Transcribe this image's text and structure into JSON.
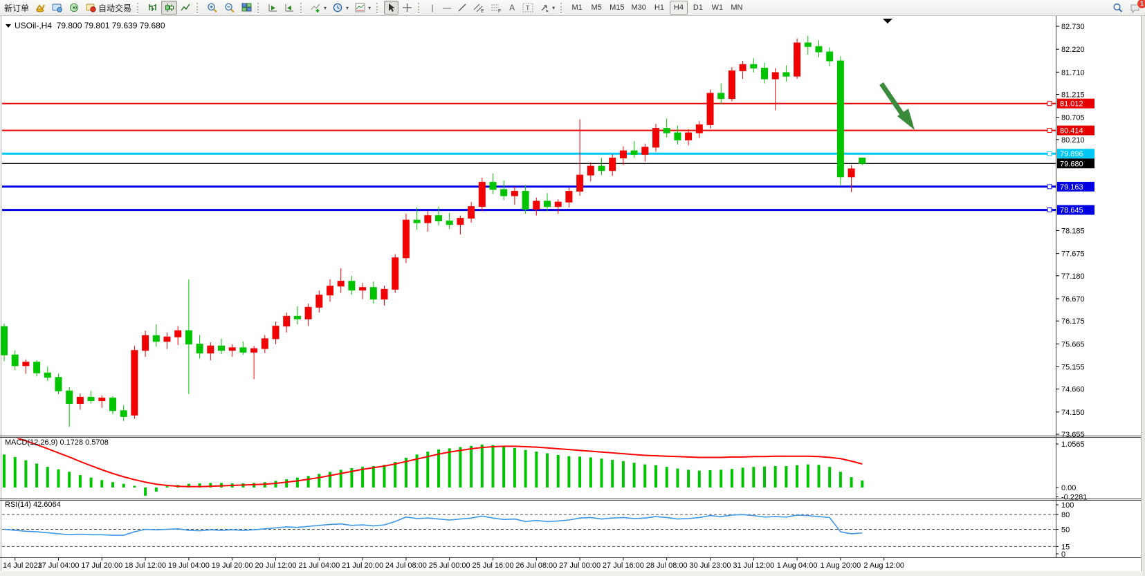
{
  "toolbar": {
    "new_order_label": "新订单",
    "autotrading_label": "自动交易",
    "timeframes": [
      "M1",
      "M5",
      "M15",
      "M30",
      "H1",
      "H4",
      "D1",
      "W1",
      "MN"
    ],
    "active_timeframe": "H4",
    "notification_count": "1",
    "channel_tool_tag": "E",
    "fibo_tool_tag": "F",
    "text_tool_label": "A",
    "label_tool_label": "T"
  },
  "chart": {
    "symbol_title": "USOil-,H4",
    "ohlc_text": "79.800 79.801 79.639 79.680",
    "current_price_label": "79.680"
  },
  "macd": {
    "header": "MACD(12,26,9)",
    "values": "0.1728 0.5708"
  },
  "rsi": {
    "header": "RSI(14)",
    "value": "42.6064"
  },
  "chart_data": {
    "type": "candlestick",
    "symbol": "USOil",
    "timeframe": "H4",
    "title": "USOil-,H4 79.800 79.801 79.639 79.680",
    "up_color": "#f00000",
    "down_color": "#00c400",
    "price_axis_ticks": [
      "82.730",
      "82.220",
      "81.710",
      "81.215",
      "80.705",
      "80.210",
      "78.185",
      "77.675",
      "77.180",
      "76.670",
      "76.175",
      "75.665",
      "75.155",
      "74.660",
      "74.150",
      "73.655"
    ],
    "price_axis_range": [
      73.655,
      82.73
    ],
    "overlay_lines": [
      {
        "label": "81.012",
        "value": 81.012,
        "color": "#e60000",
        "width": 2
      },
      {
        "label": "80.414",
        "value": 80.414,
        "color": "#e60000",
        "width": 2
      },
      {
        "label": "79.896",
        "value": 79.896,
        "color": "#00c8f5",
        "width": 3
      },
      {
        "label": "79.163",
        "value": 79.163,
        "color": "#0000e0",
        "width": 3
      },
      {
        "label": "78.645",
        "value": 78.645,
        "color": "#0000e0",
        "width": 3
      }
    ],
    "current_price_line": {
      "label": "79.680",
      "value": 79.68,
      "color": "#000000"
    },
    "annotations": [
      {
        "type": "arrow-down-right",
        "color": "#3a8a3c"
      },
      {
        "type": "chart-shift-marker",
        "color": "#000000"
      }
    ],
    "time_labels": [
      "14 Jul 2023",
      "17 Jul 04:00",
      "17 Jul 20:00",
      "18 Jul 12:00",
      "19 Jul 04:00",
      "19 Jul 20:00",
      "20 Jul 12:00",
      "21 Jul 04:00",
      "21 Jul 20:00",
      "24 Jul 08:00",
      "25 Jul 00:00",
      "25 Jul 16:00",
      "26 Jul 08:00",
      "27 Jul 00:00",
      "27 Jul 16:00",
      "28 Jul 08:00",
      "30 Jul 23:00",
      "31 Jul 12:00",
      "1 Aug 04:00",
      "1 Aug 20:00",
      "2 Aug 12:00"
    ],
    "candles": [
      [
        76.05,
        76.12,
        75.28,
        75.42
      ],
      [
        75.42,
        75.52,
        75.08,
        75.18
      ],
      [
        75.18,
        75.32,
        75.0,
        75.26
      ],
      [
        75.26,
        75.3,
        74.94,
        75.02
      ],
      [
        75.02,
        75.16,
        74.84,
        74.92
      ],
      [
        74.92,
        75.0,
        74.55,
        74.62
      ],
      [
        74.62,
        74.7,
        73.82,
        74.34
      ],
      [
        74.34,
        74.56,
        74.2,
        74.48
      ],
      [
        74.48,
        74.62,
        74.34,
        74.4
      ],
      [
        74.4,
        74.52,
        74.24,
        74.46
      ],
      [
        74.46,
        74.5,
        74.1,
        74.18
      ],
      [
        74.18,
        74.3,
        73.95,
        74.05
      ],
      [
        74.08,
        75.62,
        74.0,
        75.52
      ],
      [
        75.52,
        75.96,
        75.38,
        75.85
      ],
      [
        75.85,
        76.1,
        75.6,
        75.72
      ],
      [
        75.72,
        75.92,
        75.55,
        75.82
      ],
      [
        75.82,
        76.06,
        75.64,
        75.96
      ],
      [
        75.96,
        77.1,
        74.55,
        75.66
      ],
      [
        75.66,
        75.86,
        75.34,
        75.46
      ],
      [
        75.46,
        75.7,
        75.3,
        75.62
      ],
      [
        75.62,
        75.78,
        75.44,
        75.52
      ],
      [
        75.52,
        75.66,
        75.38,
        75.58
      ],
      [
        75.58,
        75.72,
        75.42,
        75.48
      ],
      [
        75.48,
        75.62,
        74.88,
        75.56
      ],
      [
        75.56,
        75.86,
        75.46,
        75.78
      ],
      [
        75.78,
        76.16,
        75.66,
        76.06
      ],
      [
        76.06,
        76.36,
        75.92,
        76.28
      ],
      [
        76.28,
        76.5,
        76.1,
        76.22
      ],
      [
        76.22,
        76.56,
        76.06,
        76.48
      ],
      [
        76.48,
        76.85,
        76.36,
        76.75
      ],
      [
        76.75,
        77.1,
        76.6,
        76.95
      ],
      [
        76.95,
        77.35,
        76.8,
        77.06
      ],
      [
        77.06,
        77.18,
        76.76,
        76.86
      ],
      [
        76.86,
        77.02,
        76.66,
        76.92
      ],
      [
        76.92,
        77.05,
        76.56,
        76.66
      ],
      [
        76.66,
        76.96,
        76.52,
        76.88
      ],
      [
        76.88,
        77.66,
        76.8,
        77.58
      ],
      [
        77.58,
        78.56,
        77.46,
        78.42
      ],
      [
        78.42,
        78.7,
        78.2,
        78.36
      ],
      [
        78.36,
        78.62,
        78.16,
        78.52
      ],
      [
        78.52,
        78.72,
        78.3,
        78.4
      ],
      [
        78.4,
        78.58,
        78.22,
        78.32
      ],
      [
        78.32,
        78.52,
        78.1,
        78.46
      ],
      [
        78.46,
        78.82,
        78.36,
        78.72
      ],
      [
        78.72,
        79.36,
        78.62,
        79.26
      ],
      [
        79.26,
        79.46,
        79.0,
        79.1
      ],
      [
        79.1,
        79.3,
        78.86,
        78.96
      ],
      [
        78.96,
        79.16,
        78.76,
        79.06
      ],
      [
        79.06,
        79.2,
        78.56,
        78.66
      ],
      [
        78.66,
        78.92,
        78.52,
        78.84
      ],
      [
        78.84,
        79.02,
        78.62,
        78.72
      ],
      [
        78.72,
        78.88,
        78.56,
        78.82
      ],
      [
        78.82,
        79.14,
        78.7,
        79.06
      ],
      [
        79.06,
        80.66,
        78.96,
        79.42
      ],
      [
        79.42,
        79.7,
        79.28,
        79.62
      ],
      [
        79.62,
        79.8,
        79.42,
        79.52
      ],
      [
        79.52,
        79.88,
        79.4,
        79.8
      ],
      [
        79.8,
        80.06,
        79.64,
        79.96
      ],
      [
        79.96,
        80.18,
        79.8,
        79.88
      ],
      [
        79.88,
        80.12,
        79.72,
        80.04
      ],
      [
        80.04,
        80.56,
        79.94,
        80.46
      ],
      [
        80.46,
        80.68,
        80.26,
        80.36
      ],
      [
        80.36,
        80.52,
        80.1,
        80.2
      ],
      [
        80.2,
        80.44,
        80.08,
        80.36
      ],
      [
        80.36,
        80.62,
        80.24,
        80.54
      ],
      [
        80.54,
        81.32,
        80.46,
        81.24
      ],
      [
        81.24,
        81.46,
        81.0,
        81.12
      ],
      [
        81.12,
        81.82,
        81.06,
        81.74
      ],
      [
        81.74,
        81.96,
        81.56,
        81.88
      ],
      [
        81.88,
        82.02,
        81.7,
        81.8
      ],
      [
        81.8,
        81.92,
        81.46,
        81.56
      ],
      [
        81.56,
        81.8,
        80.86,
        81.7
      ],
      [
        81.7,
        81.86,
        81.5,
        81.62
      ],
      [
        81.62,
        82.46,
        81.56,
        82.36
      ],
      [
        82.36,
        82.52,
        82.1,
        82.28
      ],
      [
        82.28,
        82.42,
        82.04,
        82.16
      ],
      [
        82.16,
        82.26,
        81.84,
        81.96
      ],
      [
        81.96,
        82.06,
        79.2,
        79.38
      ],
      [
        79.38,
        79.64,
        79.04,
        79.56
      ],
      [
        79.8,
        79.801,
        79.639,
        79.68
      ]
    ],
    "indicators": [
      {
        "name": "MACD(12,26,9)",
        "current_values": "0.1728 0.5708",
        "axis_ticks": [
          "1.0565",
          "0.00",
          "-0.2281"
        ],
        "scale_max": 1.0565,
        "scale_min": -0.2281,
        "histogram_color": "#00c400",
        "signal_color": "#ff0000",
        "histogram": [
          0.8,
          0.74,
          0.66,
          0.58,
          0.5,
          0.44,
          0.38,
          0.3,
          0.24,
          0.18,
          0.13,
          0.09,
          0.04,
          -0.2,
          -0.1,
          0.03,
          0.06,
          0.09,
          0.1,
          0.11,
          0.11,
          0.1,
          0.1,
          0.11,
          0.13,
          0.16,
          0.2,
          0.24,
          0.28,
          0.33,
          0.38,
          0.43,
          0.47,
          0.5,
          0.52,
          0.55,
          0.62,
          0.72,
          0.8,
          0.87,
          0.92,
          0.95,
          0.98,
          1.01,
          1.04,
          1.03,
          1.0,
          0.96,
          0.91,
          0.87,
          0.83,
          0.79,
          0.76,
          0.75,
          0.73,
          0.7,
          0.67,
          0.64,
          0.6,
          0.56,
          0.54,
          0.5,
          0.46,
          0.43,
          0.41,
          0.42,
          0.43,
          0.45,
          0.48,
          0.5,
          0.51,
          0.52,
          0.52,
          0.54,
          0.56,
          0.55,
          0.5,
          0.38,
          0.25,
          0.17
        ],
        "signal": [
          1.3,
          1.22,
          1.13,
          1.04,
          0.94,
          0.84,
          0.74,
          0.63,
          0.53,
          0.43,
          0.34,
          0.26,
          0.19,
          0.13,
          0.08,
          0.05,
          0.03,
          0.02,
          0.02,
          0.03,
          0.04,
          0.05,
          0.06,
          0.07,
          0.08,
          0.1,
          0.13,
          0.16,
          0.2,
          0.24,
          0.29,
          0.34,
          0.39,
          0.44,
          0.48,
          0.52,
          0.57,
          0.63,
          0.69,
          0.75,
          0.81,
          0.86,
          0.9,
          0.94,
          0.97,
          0.99,
          1.0,
          1.0,
          0.99,
          0.98,
          0.96,
          0.94,
          0.92,
          0.9,
          0.88,
          0.86,
          0.84,
          0.82,
          0.8,
          0.78,
          0.77,
          0.76,
          0.75,
          0.74,
          0.73,
          0.73,
          0.73,
          0.74,
          0.74,
          0.75,
          0.75,
          0.76,
          0.76,
          0.76,
          0.76,
          0.75,
          0.73,
          0.7,
          0.64,
          0.57
        ]
      },
      {
        "name": "RSI(14)",
        "current_values": "42.6064",
        "axis_ticks": [
          "100",
          "80",
          "50",
          "15",
          "0"
        ],
        "levels": [
          80,
          50,
          15
        ],
        "line_color": "#3c96e8",
        "values": [
          50,
          48,
          46,
          45,
          43,
          41,
          39,
          40,
          39,
          39,
          38,
          38,
          45,
          50,
          49,
          50,
          51,
          48,
          47,
          49,
          48,
          49,
          48,
          49,
          51,
          53,
          55,
          54,
          56,
          58,
          60,
          61,
          58,
          59,
          57,
          59,
          66,
          75,
          72,
          73,
          71,
          69,
          71,
          73,
          77,
          73,
          70,
          71,
          66,
          68,
          66,
          67,
          69,
          73,
          74,
          71,
          73,
          74,
          72,
          73,
          76,
          74,
          71,
          72,
          74,
          78,
          76,
          79,
          80,
          78,
          75,
          76,
          75,
          79,
          78,
          76,
          74,
          45,
          41,
          42.6
        ]
      }
    ]
  }
}
